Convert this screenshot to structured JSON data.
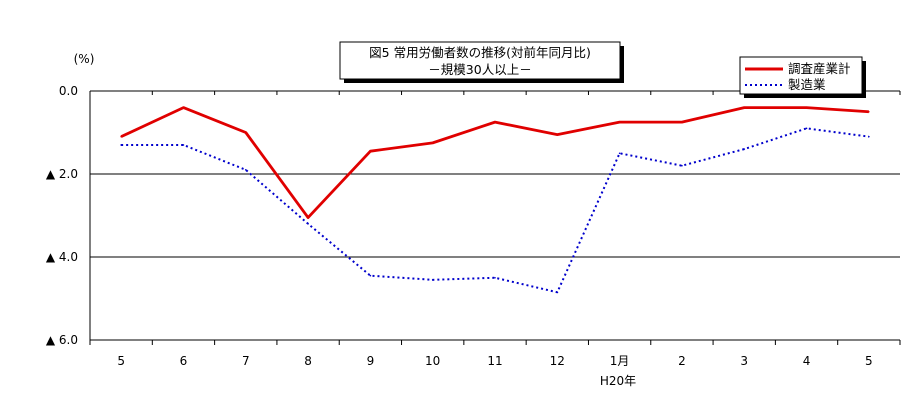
{
  "chart_data": {
    "type": "line",
    "title": "図5 常用労働者数の推移(対前年同月比)",
    "subtitle": "－規模30人以上－",
    "ylabel": "(%)",
    "xlabel": "",
    "categories": [
      "5",
      "6",
      "7",
      "8",
      "9",
      "10",
      "11",
      "12",
      "1月",
      "2",
      "3",
      "4",
      "5"
    ],
    "year_label": "H20年",
    "y_ticks": [
      "0.0",
      "▲ 2.0",
      "▲ 4.0",
      "▲ 6.0"
    ],
    "ylim": [
      -6,
      0
    ],
    "grid": true,
    "legend_position": "top-right",
    "series": [
      {
        "name": "調査産業計",
        "color": "#e00000",
        "style": "solid",
        "values": [
          -1.1,
          -0.4,
          -1.0,
          -3.05,
          -1.45,
          -1.25,
          -0.75,
          -1.05,
          -0.75,
          -0.75,
          -0.4,
          -0.4,
          -0.5
        ]
      },
      {
        "name": "製造業",
        "color": "#0000cc",
        "style": "dotted",
        "values": [
          -1.3,
          -1.3,
          -1.9,
          -3.2,
          -4.45,
          -4.55,
          -4.5,
          -4.85,
          -1.5,
          -1.8,
          -1.4,
          -0.9,
          -1.1
        ]
      }
    ]
  }
}
